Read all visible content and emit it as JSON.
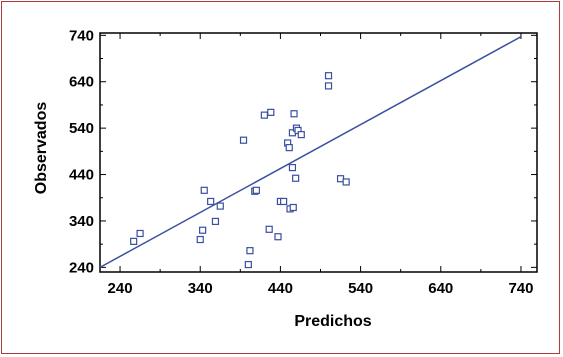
{
  "chart_data": {
    "type": "scatter",
    "title": "",
    "xlabel": "Predichos",
    "ylabel": "Observados",
    "xlim": [
      215,
      760
    ],
    "ylim": [
      230,
      745
    ],
    "xticks": [
      240,
      340,
      440,
      540,
      640,
      740
    ],
    "yticks": [
      240,
      340,
      440,
      540,
      640,
      740
    ],
    "grid": false,
    "colors": {
      "points": "#3a4fa0",
      "line": "#3a4fa0",
      "frame": "#b03a3a",
      "axes": "#000000"
    },
    "series": [
      {
        "type": "scatter",
        "points": [
          [
            257,
            296
          ],
          [
            265,
            313
          ],
          [
            340,
            300
          ],
          [
            343,
            320
          ],
          [
            345,
            406
          ],
          [
            353,
            382
          ],
          [
            359,
            339
          ],
          [
            365,
            372
          ],
          [
            394,
            514
          ],
          [
            400,
            246
          ],
          [
            402,
            276
          ],
          [
            408,
            404
          ],
          [
            410,
            406
          ],
          [
            420,
            568
          ],
          [
            426,
            322
          ],
          [
            428,
            574
          ],
          [
            437,
            306
          ],
          [
            440,
            382
          ],
          [
            444,
            382
          ],
          [
            449,
            508
          ],
          [
            451,
            498
          ],
          [
            452,
            366
          ],
          [
            455,
            455
          ],
          [
            455,
            530
          ],
          [
            456,
            369
          ],
          [
            457,
            571
          ],
          [
            459,
            432
          ],
          [
            460,
            540
          ],
          [
            462,
            535
          ],
          [
            466,
            526
          ],
          [
            500,
            653
          ],
          [
            500,
            631
          ],
          [
            515,
            431
          ],
          [
            522,
            424
          ]
        ]
      },
      {
        "type": "line",
        "points": [
          [
            215,
            240
          ],
          [
            740,
            737
          ]
        ]
      }
    ]
  }
}
